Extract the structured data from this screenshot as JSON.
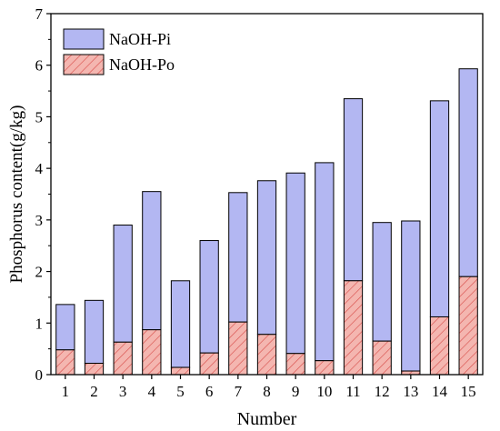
{
  "chart_data": {
    "type": "bar",
    "stacked": true,
    "title": "",
    "xlabel": "Number",
    "ylabel": "Phosphorus content(g/kg)",
    "ylim": [
      0,
      7
    ],
    "yticks": [
      "0",
      "1",
      "2",
      "3",
      "4",
      "5",
      "6",
      "7"
    ],
    "categories": [
      "1",
      "2",
      "3",
      "4",
      "5",
      "6",
      "7",
      "8",
      "9",
      "10",
      "11",
      "12",
      "13",
      "14",
      "15"
    ],
    "series": [
      {
        "name": "NaOH-Po",
        "color": "#f4b6b0",
        "hatch": "diagonal",
        "values": [
          0.48,
          0.22,
          0.63,
          0.87,
          0.14,
          0.42,
          1.02,
          0.78,
          0.41,
          0.27,
          1.82,
          0.65,
          0.07,
          1.12,
          1.9
        ]
      },
      {
        "name": "NaOH-Pi",
        "color": "#b3b7f2",
        "values": [
          0.88,
          1.22,
          2.27,
          2.68,
          1.68,
          2.18,
          2.51,
          2.98,
          3.5,
          3.84,
          3.53,
          2.3,
          2.91,
          4.19,
          4.03
        ]
      }
    ],
    "legend_position": "top-left",
    "grid": false
  }
}
